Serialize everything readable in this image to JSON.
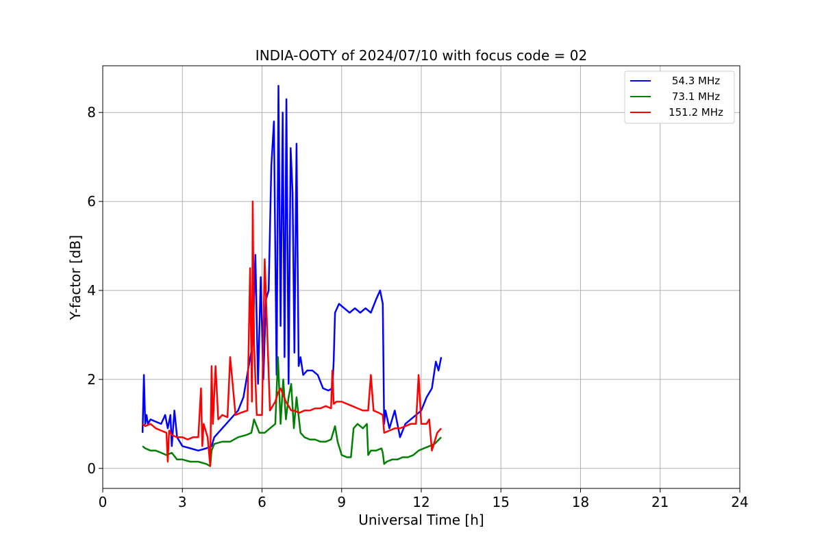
{
  "chart_data": {
    "type": "line",
    "title": "INDIA-OOTY of 2024/07/10 with focus code = 02",
    "xlabel": "Universal Time [h]",
    "ylabel": "Y-factor [dB]",
    "xlim": [
      0,
      24
    ],
    "ylim": [
      -0.45,
      9.05
    ],
    "xticks": [
      0,
      3,
      6,
      9,
      12,
      15,
      18,
      21,
      24
    ],
    "yticks": [
      0,
      2,
      4,
      6,
      8
    ],
    "grid": true,
    "legend_position": "top-right",
    "series": [
      {
        "name": "54.3 MHz",
        "color": "#0000ff",
        "x": [
          1.5,
          1.55,
          1.6,
          1.65,
          1.7,
          1.8,
          2.0,
          2.2,
          2.35,
          2.45,
          2.55,
          2.6,
          2.7,
          2.8,
          3.0,
          3.3,
          3.6,
          3.9,
          4.1,
          4.2,
          4.5,
          4.8,
          5.1,
          5.3,
          5.5,
          5.65,
          5.75,
          5.85,
          5.95,
          6.05,
          6.15,
          6.25,
          6.35,
          6.45,
          6.55,
          6.62,
          6.7,
          6.78,
          6.85,
          6.92,
          7.0,
          7.08,
          7.15,
          7.22,
          7.3,
          7.38,
          7.45,
          7.55,
          7.7,
          7.9,
          8.1,
          8.3,
          8.5,
          8.65,
          8.7,
          8.75,
          8.9,
          9.1,
          9.3,
          9.5,
          9.7,
          9.9,
          10.1,
          10.3,
          10.45,
          10.55,
          10.6,
          10.65,
          10.8,
          11.0,
          11.2,
          11.4,
          11.6,
          11.8,
          12.0,
          12.2,
          12.4,
          12.55,
          12.65,
          12.75
        ],
        "y": [
          0.8,
          2.1,
          1.0,
          1.2,
          1.0,
          1.1,
          1.05,
          1.0,
          1.2,
          0.9,
          1.2,
          0.5,
          1.3,
          0.7,
          0.5,
          0.45,
          0.4,
          0.45,
          0.5,
          0.7,
          0.9,
          1.1,
          1.3,
          1.6,
          2.3,
          2.8,
          4.8,
          1.9,
          4.3,
          2.0,
          3.8,
          4.0,
          6.8,
          7.8,
          2.1,
          8.6,
          3.2,
          8.0,
          2.5,
          8.3,
          1.9,
          7.2,
          6.2,
          2.6,
          7.3,
          2.3,
          2.5,
          2.1,
          2.2,
          2.2,
          2.1,
          1.8,
          1.75,
          1.8,
          2.4,
          3.5,
          3.7,
          3.6,
          3.5,
          3.6,
          3.5,
          3.6,
          3.5,
          3.8,
          4.0,
          3.7,
          1.0,
          1.3,
          0.9,
          1.3,
          0.7,
          1.0,
          1.1,
          1.2,
          1.3,
          1.6,
          1.8,
          2.4,
          2.2,
          2.5
        ]
      },
      {
        "name": "73.1 MHz",
        "color": "#008000",
        "x": [
          1.5,
          1.6,
          1.8,
          2.0,
          2.2,
          2.4,
          2.6,
          2.8,
          3.0,
          3.3,
          3.6,
          3.9,
          4.05,
          4.1,
          4.2,
          4.5,
          4.8,
          5.1,
          5.4,
          5.6,
          5.7,
          5.9,
          6.1,
          6.3,
          6.5,
          6.6,
          6.7,
          6.8,
          6.9,
          7.0,
          7.1,
          7.2,
          7.3,
          7.45,
          7.6,
          7.8,
          8.0,
          8.2,
          8.4,
          8.6,
          8.75,
          8.85,
          9.0,
          9.2,
          9.35,
          9.45,
          9.6,
          9.8,
          9.95,
          10.0,
          10.1,
          10.3,
          10.5,
          10.55,
          10.6,
          10.7,
          10.9,
          11.1,
          11.3,
          11.5,
          11.7,
          11.9,
          12.1,
          12.3,
          12.5,
          12.75
        ],
        "y": [
          0.5,
          0.45,
          0.4,
          0.4,
          0.35,
          0.3,
          0.35,
          0.2,
          0.2,
          0.15,
          0.15,
          0.1,
          0.05,
          0.4,
          0.55,
          0.6,
          0.6,
          0.7,
          0.75,
          0.8,
          1.1,
          0.8,
          0.8,
          0.9,
          1.0,
          2.5,
          1.0,
          2.0,
          1.1,
          1.6,
          1.9,
          0.9,
          1.6,
          0.8,
          0.7,
          0.65,
          0.65,
          0.6,
          0.6,
          0.65,
          0.95,
          0.6,
          0.3,
          0.25,
          0.25,
          0.9,
          1.0,
          0.9,
          1.0,
          0.3,
          0.4,
          0.4,
          0.45,
          0.35,
          0.1,
          0.15,
          0.2,
          0.2,
          0.25,
          0.25,
          0.3,
          0.4,
          0.45,
          0.5,
          0.55,
          0.7
        ]
      },
      {
        "name": "151.2 MHz",
        "color": "#ff0000",
        "x": [
          1.5,
          1.6,
          1.8,
          2.0,
          2.2,
          2.4,
          2.45,
          2.5,
          2.6,
          2.8,
          3.0,
          3.2,
          3.4,
          3.6,
          3.7,
          3.75,
          3.8,
          3.95,
          4.05,
          4.1,
          4.15,
          4.25,
          4.35,
          4.5,
          4.7,
          4.8,
          5.0,
          5.2,
          5.45,
          5.55,
          5.62,
          5.65,
          5.7,
          5.8,
          5.9,
          6.0,
          6.1,
          6.3,
          6.5,
          6.6,
          6.7,
          6.9,
          7.0,
          7.1,
          7.2,
          7.4,
          7.6,
          7.8,
          8.0,
          8.2,
          8.4,
          8.6,
          8.65,
          8.7,
          8.8,
          9.0,
          9.2,
          9.4,
          9.6,
          9.8,
          10.0,
          10.1,
          10.2,
          10.4,
          10.55,
          10.6,
          10.8,
          11.0,
          11.2,
          11.4,
          11.6,
          11.8,
          11.9,
          12.0,
          12.2,
          12.3,
          12.4,
          12.6,
          12.75
        ],
        "y": [
          1.0,
          0.95,
          1.0,
          0.9,
          0.85,
          0.8,
          0.15,
          0.85,
          0.75,
          0.7,
          0.7,
          0.65,
          0.7,
          0.7,
          1.8,
          0.5,
          1.0,
          0.7,
          0.05,
          2.3,
          1.0,
          2.3,
          1.1,
          1.2,
          1.15,
          2.5,
          1.2,
          1.25,
          1.3,
          4.5,
          1.5,
          6.0,
          2.8,
          1.2,
          1.2,
          1.2,
          4.7,
          1.3,
          1.5,
          1.7,
          1.8,
          1.5,
          1.4,
          1.3,
          1.3,
          1.25,
          1.3,
          1.3,
          1.35,
          1.35,
          1.4,
          1.35,
          2.2,
          1.45,
          1.5,
          1.5,
          1.45,
          1.4,
          1.35,
          1.3,
          1.3,
          2.1,
          1.3,
          1.25,
          1.2,
          0.8,
          0.85,
          0.9,
          0.9,
          0.95,
          1.0,
          1.0,
          2.1,
          1.0,
          1.0,
          1.1,
          0.4,
          0.8,
          0.9
        ]
      }
    ]
  }
}
